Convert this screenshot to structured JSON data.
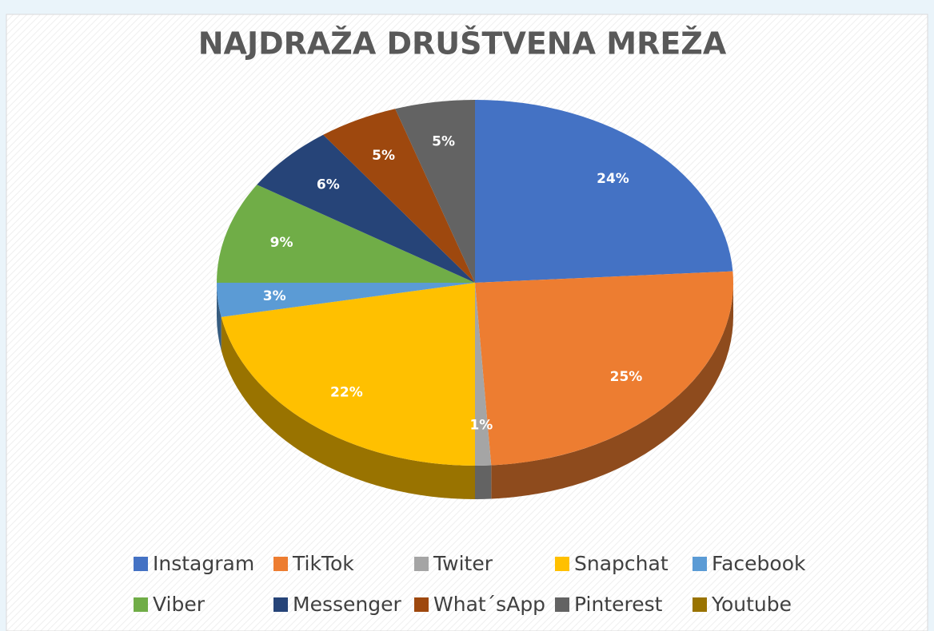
{
  "chart_data": {
    "type": "pie",
    "title": "NAJDRAŽA DRUŠTVENA MREŽA",
    "categories": [
      "Instagram",
      "TikTok",
      "Twiter",
      "Snapchat",
      "Facebook",
      "Viber",
      "Messenger",
      "What´sApp",
      "Pinterest",
      "Youtube"
    ],
    "values": [
      24,
      25,
      1,
      22,
      3,
      9,
      6,
      5,
      5,
      0
    ],
    "colors": [
      "#4472c4",
      "#ed7d31",
      "#a5a5a5",
      "#ffc000",
      "#5b9bd5",
      "#70ad47",
      "#264478",
      "#9e480e",
      "#636363",
      "#997300"
    ],
    "legend": "bottom"
  }
}
